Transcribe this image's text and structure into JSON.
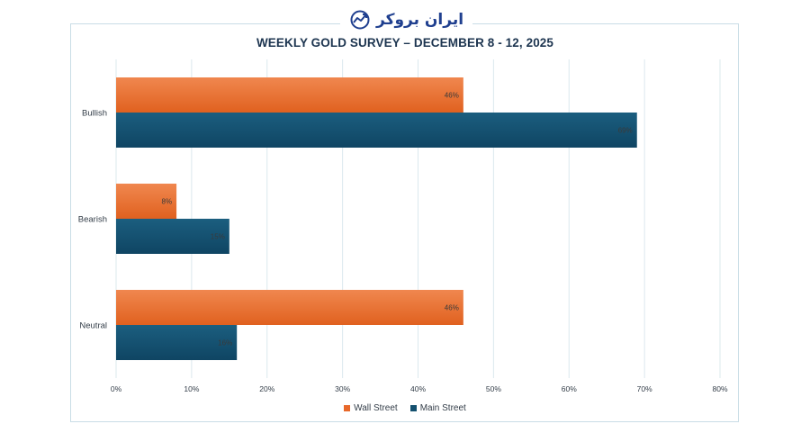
{
  "brand": {
    "name": "ایران بروکر"
  },
  "chart_data": {
    "type": "bar",
    "orientation": "horizontal",
    "title": "WEEKLY GOLD SURVEY – DECEMBER 8 - 12, 2025",
    "categories": [
      "Bullish",
      "Bearish",
      "Neutral"
    ],
    "series": [
      {
        "name": "Wall Street",
        "values": [
          46,
          8,
          46
        ],
        "color": "#e8682a"
      },
      {
        "name": "Main Street",
        "values": [
          69,
          15,
          16
        ],
        "color": "#14506f"
      }
    ],
    "xlim": [
      0,
      80
    ],
    "xticks": [
      "0%",
      "10%",
      "20%",
      "30%",
      "40%",
      "50%",
      "60%",
      "70%",
      "80%"
    ],
    "value_suffix": "%",
    "grid": true,
    "legend": "bottom"
  }
}
